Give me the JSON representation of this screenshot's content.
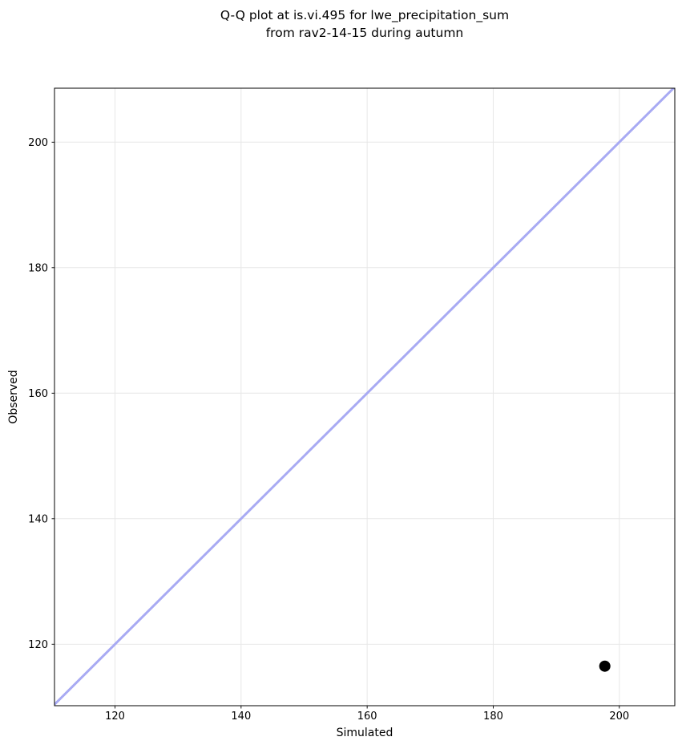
{
  "figure": {
    "background": "#ffffff"
  },
  "chart_data": {
    "type": "scatter",
    "title_lines": [
      "Q-Q plot at is.vi.495 for lwe_precipitation_sum",
      "from rav2-14-15 during autumn"
    ],
    "xlabel": "Simulated",
    "ylabel": "Observed",
    "xlim": [
      110.4,
      208.8
    ],
    "ylim": [
      110.2,
      208.6
    ],
    "xticks": [
      120,
      140,
      160,
      180,
      200
    ],
    "yticks": [
      120,
      140,
      160,
      180,
      200
    ],
    "grid": true,
    "legend": "none",
    "series": [
      {
        "name": "quantile-points",
        "type": "scatter",
        "color": "#000000",
        "marker_radius": 7,
        "points": [
          {
            "x": 197.7,
            "y": 116.5
          }
        ]
      }
    ],
    "reference_line": {
      "type": "identity",
      "from": 110.4,
      "to": 208.8,
      "color": "#a8aaf3",
      "width": 3
    },
    "colors": {
      "grid": "#e7e7e7",
      "spine": "#000000",
      "tick": "#000000",
      "text": "#000000",
      "plot_background": "#ffffff"
    }
  }
}
